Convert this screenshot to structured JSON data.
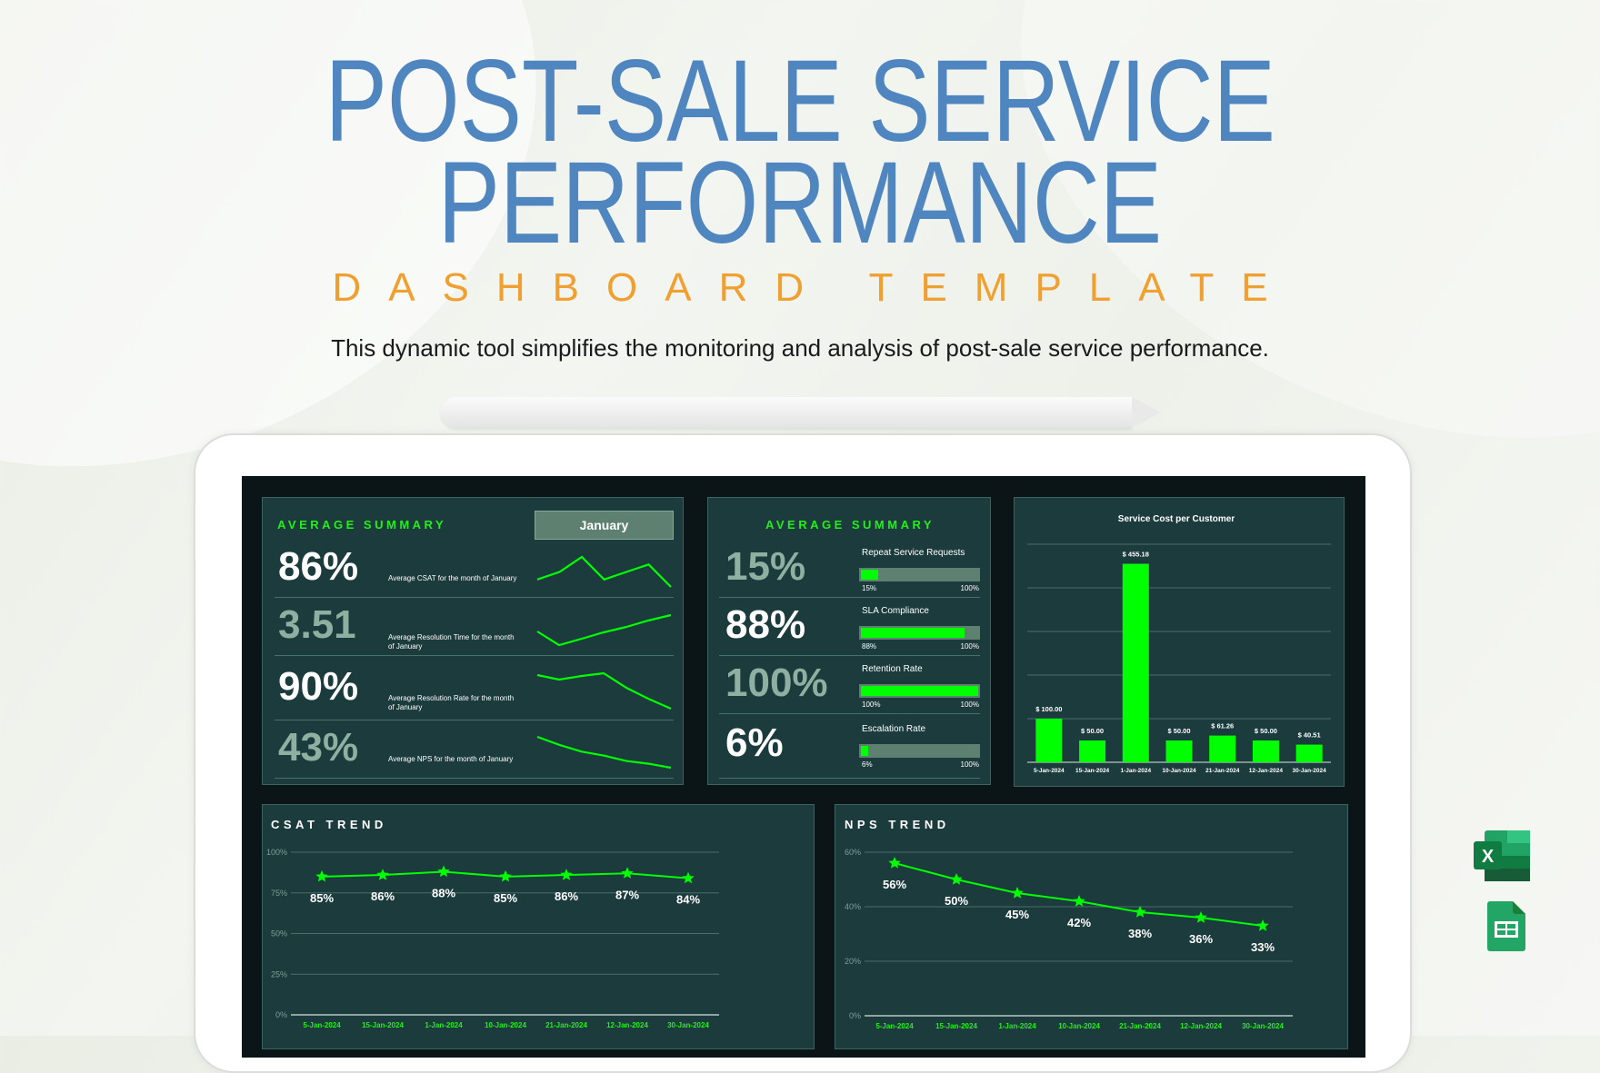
{
  "header": {
    "title_line1": "POST-SALE SERVICE",
    "title_line2": "PERFORMANCE",
    "subheading": "DASHBOARD TEMPLATE",
    "description": "This dynamic tool simplifies the monitoring and analysis of post-sale service performance."
  },
  "summary_left": {
    "title": "AVERAGE SUMMARY",
    "month_selector": "January",
    "rows": [
      {
        "value": "86%",
        "label": "Average CSAT for the month of January",
        "tone": "white"
      },
      {
        "value": "3.51",
        "label": "Average Resolution Time for the month of January",
        "tone": "muted"
      },
      {
        "value": "90%",
        "label": "Average Resolution Rate for the month of January",
        "tone": "white"
      },
      {
        "value": "43%",
        "label": "Average NPS for the month of January",
        "tone": "muted"
      }
    ]
  },
  "summary_right": {
    "title": "AVERAGE SUMMARY",
    "rows": [
      {
        "value": "15%",
        "label": "Repeat Service Requests",
        "progress": 15,
        "min_label": "15%",
        "max_label": "100%",
        "tone": "muted"
      },
      {
        "value": "88%",
        "label": "SLA Compliance",
        "progress": 88,
        "min_label": "88%",
        "max_label": "100%",
        "tone": "white"
      },
      {
        "value": "100%",
        "label": "Retention Rate",
        "progress": 100,
        "min_label": "100%",
        "max_label": "100%",
        "tone": "muted"
      },
      {
        "value": "6%",
        "label": "Escalation Rate",
        "progress": 6,
        "min_label": "6%",
        "max_label": "100%",
        "tone": "white"
      }
    ]
  },
  "colors": {
    "accent_green": "#00ff00",
    "panel_bg": "#1b3b3d",
    "screen_bg": "#0b1517",
    "title_blue": "#4f86c0",
    "subheading_orange": "#f0a030"
  },
  "icons": [
    "excel-icon",
    "google-sheets-icon"
  ],
  "chart_data": [
    {
      "type": "bar",
      "title": "Service Cost per Customer",
      "categories": [
        "5-Jan-2024",
        "15-Jan-2024",
        "1-Jan-2024",
        "10-Jan-2024",
        "21-Jan-2024",
        "12-Jan-2024",
        "30-Jan-2024"
      ],
      "values": [
        100.0,
        50.0,
        455.18,
        50.0,
        61.26,
        50.0,
        40.51
      ],
      "data_labels": [
        "$ 100.00",
        "$ 50.00",
        "$ 455.18",
        "$ 50.00",
        "$ 61.26",
        "$ 50.00",
        "$ 40.51"
      ],
      "ylim": [
        0,
        500
      ],
      "grid": true
    },
    {
      "type": "line",
      "title": "CSAT TREND",
      "categories": [
        "5-Jan-2024",
        "15-Jan-2024",
        "1-Jan-2024",
        "10-Jan-2024",
        "21-Jan-2024",
        "12-Jan-2024",
        "30-Jan-2024"
      ],
      "values": [
        85,
        86,
        88,
        85,
        86,
        87,
        84
      ],
      "data_labels": [
        "85%",
        "86%",
        "88%",
        "85%",
        "86%",
        "87%",
        "84%"
      ],
      "yticks": [
        "0%",
        "25%",
        "50%",
        "75%",
        "100%"
      ],
      "ylim": [
        0,
        100
      ],
      "marker": "star",
      "grid": true
    },
    {
      "type": "line",
      "title": "NPS TREND",
      "categories": [
        "5-Jan-2024",
        "15-Jan-2024",
        "1-Jan-2024",
        "10-Jan-2024",
        "21-Jan-2024",
        "12-Jan-2024",
        "30-Jan-2024"
      ],
      "values": [
        56,
        50,
        45,
        42,
        38,
        36,
        33
      ],
      "data_labels": [
        "56%",
        "50%",
        "45%",
        "42%",
        "38%",
        "36%",
        "33%"
      ],
      "yticks": [
        "0%",
        "20%",
        "40%",
        "60%"
      ],
      "ylim": [
        0,
        60
      ],
      "marker": "star",
      "grid": true
    }
  ]
}
